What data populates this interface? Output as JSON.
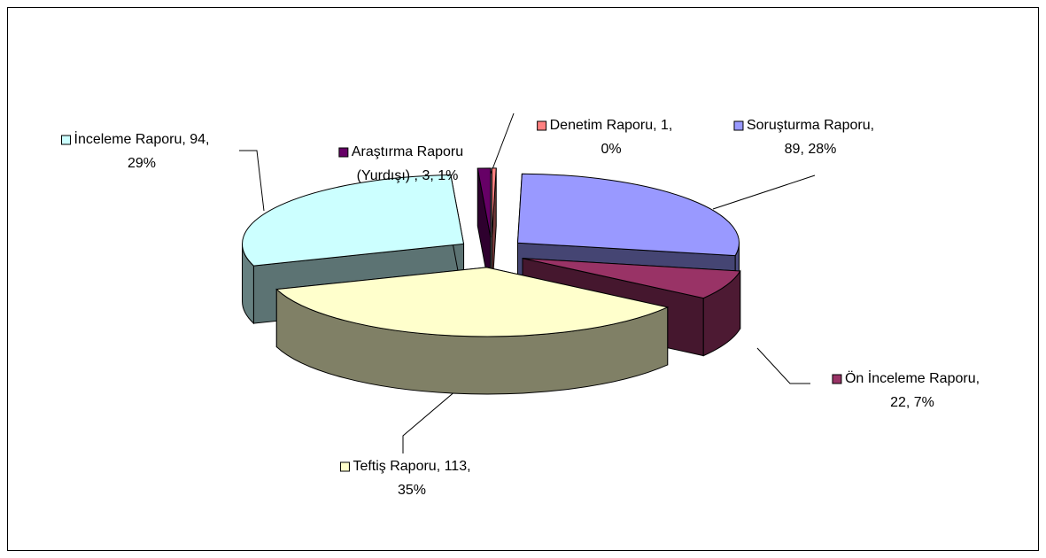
{
  "chart_data": {
    "type": "pie3d",
    "values": [
      1,
      89,
      22,
      113,
      94,
      3
    ],
    "value_labels": [
      [
        "Denetim Raporu, 1,",
        "0%"
      ],
      [
        "Soruşturma Raporu,",
        "89, 28%"
      ],
      [
        "Ön İnceleme Raporu,",
        "22, 7%"
      ],
      [
        "Teftiş Raporu, 113,",
        "35%"
      ],
      [
        "İnceleme Raporu, 94,",
        "29%"
      ],
      [
        "Araştırma Raporu",
        "(Yurdışı) , 3, 1%"
      ]
    ],
    "colors": [
      "#ff8080",
      "#9999ff",
      "#993366",
      "#ffffcc",
      "#ccffff",
      "#660066"
    ]
  }
}
